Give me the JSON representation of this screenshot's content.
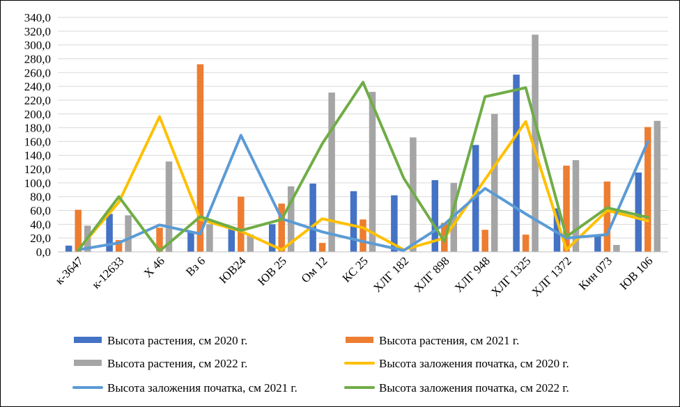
{
  "chart_data": {
    "type": "bar",
    "categories": [
      "к-3647",
      "к-12633",
      "Х 46",
      "Вз 6",
      "ЮВ24",
      "ЮВ 25",
      "Ом 12",
      "КС 25",
      "ХЛГ 182",
      "ХЛГ 898",
      "ХЛГ 948",
      "ХЛГ 1325",
      "ХЛГ 1372",
      "Кин 073",
      "ЮВ 106"
    ],
    "ylim": [
      0,
      340
    ],
    "ytick_step": 20,
    "ytick_labels": [
      "0,0",
      "20,0",
      "40,0",
      "60,0",
      "80,0",
      "100,0",
      "120,0",
      "140,0",
      "160,0",
      "180,0",
      "200,0",
      "220,0",
      "240,0",
      "260,0",
      "280,0",
      "300,0",
      "320,0",
      "340,0"
    ],
    "grid": true,
    "legend_position": "bottom",
    "series": [
      {
        "name": "Высота растения, см 2020 г.",
        "kind": "bar",
        "color": "#4472C4",
        "values": [
          9,
          55,
          0,
          30,
          35,
          40,
          99,
          88,
          82,
          104,
          155,
          257,
          63,
          25,
          115
        ]
      },
      {
        "name": "Высота растения, см 2021 г.",
        "kind": "bar",
        "color": "#ED7D31",
        "values": [
          61,
          17,
          35,
          272,
          80,
          70,
          13,
          47,
          0,
          42,
          32,
          25,
          125,
          102,
          181
        ]
      },
      {
        "name": "Высота растения, см 2022 г.",
        "kind": "bar",
        "color": "#A5A5A5",
        "values": [
          38,
          53,
          131,
          40,
          25,
          95,
          231,
          232,
          166,
          100,
          200,
          315,
          133,
          10,
          190
        ]
      },
      {
        "name": "Высота заложения початка, см 2020 г.",
        "kind": "line",
        "color": "#FFC000",
        "values": [
          3,
          72,
          196,
          47,
          30,
          3,
          48,
          35,
          3,
          20,
          105,
          189,
          3,
          60,
          45
        ]
      },
      {
        "name": "Высота заложения початка, см 2021 г.",
        "kind": "line",
        "color": "#5B9BD5",
        "values": [
          3,
          13,
          39,
          26,
          169,
          48,
          29,
          15,
          2,
          40,
          92,
          55,
          20,
          25,
          160
        ]
      },
      {
        "name": "Высота заложения початка, см 2022 г.",
        "kind": "line",
        "color": "#70AD47",
        "values": [
          2,
          80,
          1,
          51,
          31,
          47,
          157,
          246,
          107,
          15,
          225,
          238,
          22,
          64,
          50
        ]
      }
    ]
  }
}
